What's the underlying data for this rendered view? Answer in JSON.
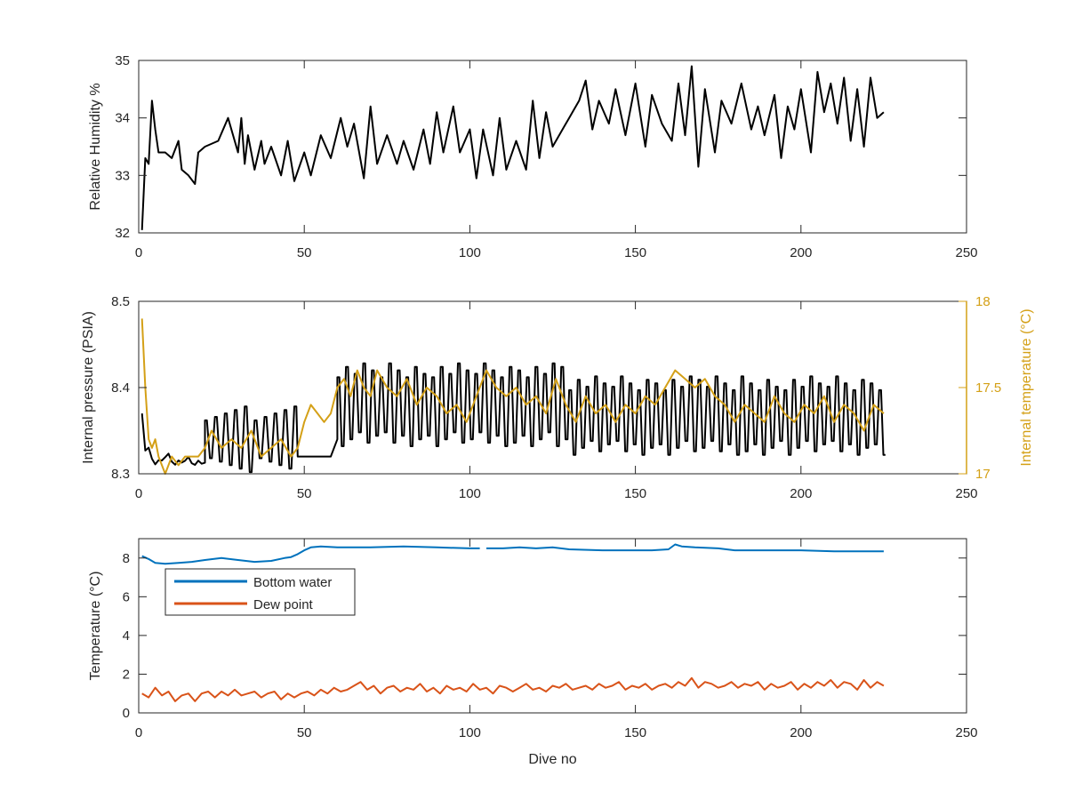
{
  "chart_data": [
    {
      "type": "line",
      "title": "",
      "xlabel": "",
      "ylabel": "Relative Humidity %",
      "xlim": [
        0,
        250
      ],
      "ylim": [
        32,
        35
      ],
      "xticks": [
        0,
        50,
        100,
        150,
        200,
        250
      ],
      "yticks": [
        32,
        33,
        34,
        35
      ],
      "grid": false,
      "series": [
        {
          "color": "#000000",
          "x": [
            1,
            2,
            3,
            4,
            5,
            6,
            8,
            10,
            12,
            13,
            15,
            17,
            18,
            20,
            24,
            27,
            30,
            31,
            32,
            33,
            35,
            37,
            38,
            40,
            43,
            45,
            47,
            50,
            52,
            55,
            58,
            61,
            63,
            65,
            68,
            70,
            72,
            75,
            78,
            80,
            83,
            86,
            88,
            90,
            92,
            95,
            97,
            100,
            102,
            104,
            107,
            109,
            111,
            114,
            117,
            119,
            121,
            123,
            125,
            127,
            130,
            133,
            135,
            137,
            139,
            142,
            144,
            147,
            150,
            153,
            155,
            158,
            161,
            163,
            165,
            167,
            169,
            171,
            174,
            176,
            179,
            182,
            185,
            187,
            189,
            192,
            194,
            196,
            198,
            200,
            203,
            205,
            207,
            209,
            211,
            213,
            215,
            217,
            219,
            221,
            223,
            225
          ],
          "y": [
            32.05,
            33.3,
            33.2,
            34.3,
            33.8,
            33.4,
            33.4,
            33.3,
            33.6,
            33.1,
            33.0,
            32.85,
            33.4,
            33.5,
            33.6,
            34.0,
            33.4,
            34.0,
            33.2,
            33.7,
            33.1,
            33.6,
            33.2,
            33.5,
            33.0,
            33.6,
            32.9,
            33.4,
            33.0,
            33.7,
            33.3,
            34.0,
            33.5,
            33.9,
            32.95,
            34.2,
            33.2,
            33.7,
            33.2,
            33.6,
            33.1,
            33.8,
            33.2,
            34.1,
            33.4,
            34.2,
            33.4,
            33.8,
            32.95,
            33.8,
            33.0,
            34.0,
            33.1,
            33.6,
            33.1,
            34.3,
            33.3,
            34.1,
            33.5,
            33.7,
            34.0,
            34.3,
            34.65,
            33.8,
            34.3,
            33.9,
            34.5,
            33.7,
            34.6,
            33.5,
            34.4,
            33.9,
            33.6,
            34.6,
            33.7,
            34.9,
            33.15,
            34.5,
            33.4,
            34.3,
            33.9,
            34.6,
            33.8,
            34.2,
            33.7,
            34.4,
            33.3,
            34.2,
            33.8,
            34.5,
            33.4,
            34.8,
            34.1,
            34.6,
            33.9,
            34.7,
            33.6,
            34.5,
            33.5,
            34.7,
            34.0,
            34.1
          ]
        }
      ]
    },
    {
      "type": "line",
      "title": "",
      "xlabel": "",
      "ylabel": "Internal pressure (PSIA)",
      "ylabel_right": "Internal temperature (°C)",
      "xlim": [
        0,
        250
      ],
      "ylim": [
        8.3,
        8.5
      ],
      "ylim_right": [
        17,
        18
      ],
      "xticks": [
        0,
        50,
        100,
        150,
        200,
        250
      ],
      "yticks": [
        8.3,
        8.4,
        8.5
      ],
      "yticks_right": [
        17,
        17.5,
        18
      ],
      "grid": false,
      "series": [
        {
          "axis": "left",
          "color": "#000000",
          "pattern": {
            "segments": [
              {
                "x0": 1,
                "x1": 20,
                "base": 8.31,
                "amp": 0.02,
                "period": 6,
                "start": 8.37
              },
              {
                "x0": 20,
                "x1": 48,
                "low": 8.31,
                "high": 8.37,
                "period": 3
              },
              {
                "x0": 48,
                "x1": 60,
                "level": 8.32,
                "end": 8.34
              },
              {
                "x0": 60,
                "x1": 130,
                "low": 8.34,
                "high": 8.42,
                "period": 2.6
              },
              {
                "x0": 130,
                "x1": 225,
                "low": 8.33,
                "high": 8.405,
                "period": 2.6
              }
            ]
          }
        },
        {
          "axis": "right",
          "color": "#D4A017",
          "x": [
            1,
            2,
            3,
            4,
            5,
            6,
            8,
            10,
            12,
            14,
            16,
            18,
            20,
            22,
            25,
            28,
            31,
            34,
            37,
            40,
            43,
            46,
            48,
            50,
            52,
            54,
            56,
            58,
            60,
            62,
            64,
            66,
            68,
            70,
            72,
            75,
            78,
            81,
            84,
            87,
            90,
            93,
            96,
            99,
            102,
            105,
            108,
            111,
            114,
            117,
            120,
            123,
            126,
            129,
            132,
            135,
            138,
            141,
            144,
            147,
            150,
            153,
            156,
            159,
            162,
            165,
            168,
            171,
            174,
            177,
            180,
            183,
            186,
            189,
            192,
            195,
            198,
            201,
            204,
            207,
            210,
            213,
            216,
            219,
            222,
            225
          ],
          "y": [
            17.9,
            17.5,
            17.2,
            17.15,
            17.2,
            17.1,
            17.0,
            17.1,
            17.05,
            17.1,
            17.1,
            17.1,
            17.15,
            17.25,
            17.15,
            17.2,
            17.15,
            17.25,
            17.1,
            17.15,
            17.2,
            17.1,
            17.15,
            17.3,
            17.4,
            17.35,
            17.3,
            17.35,
            17.5,
            17.55,
            17.45,
            17.6,
            17.5,
            17.45,
            17.6,
            17.5,
            17.45,
            17.55,
            17.4,
            17.5,
            17.45,
            17.35,
            17.4,
            17.3,
            17.45,
            17.6,
            17.5,
            17.45,
            17.5,
            17.4,
            17.45,
            17.35,
            17.55,
            17.4,
            17.3,
            17.45,
            17.35,
            17.4,
            17.3,
            17.4,
            17.35,
            17.45,
            17.4,
            17.5,
            17.6,
            17.55,
            17.5,
            17.55,
            17.45,
            17.4,
            17.3,
            17.4,
            17.35,
            17.3,
            17.45,
            17.35,
            17.3,
            17.4,
            17.35,
            17.45,
            17.3,
            17.4,
            17.35,
            17.25,
            17.4,
            17.35
          ]
        }
      ]
    },
    {
      "type": "line",
      "title": "",
      "xlabel": "Dive no",
      "ylabel": "Temperature (°C)",
      "xlim": [
        0,
        250
      ],
      "ylim": [
        0,
        9
      ],
      "xticks": [
        0,
        50,
        100,
        150,
        200,
        250
      ],
      "yticks": [
        0,
        2,
        4,
        6,
        8
      ],
      "grid": false,
      "legend": "top-left",
      "series": [
        {
          "name": "Bottom water",
          "color": "#0072BD",
          "x": [
            1,
            3,
            5,
            8,
            12,
            16,
            20,
            25,
            30,
            35,
            40,
            44,
            46,
            48,
            50,
            52,
            55,
            60,
            70,
            80,
            90,
            100,
            103
          ],
          "y": [
            8.1,
            7.95,
            7.75,
            7.7,
            7.75,
            7.8,
            7.9,
            8.0,
            7.9,
            7.8,
            7.85,
            8.0,
            8.05,
            8.2,
            8.4,
            8.55,
            8.6,
            8.55,
            8.55,
            8.6,
            8.55,
            8.5,
            8.5
          ]
        },
        {
          "name": "",
          "color": "#0072BD",
          "x": [
            105,
            110,
            115,
            120,
            125,
            130,
            140,
            150,
            155,
            160,
            162,
            164,
            168,
            175,
            180,
            190,
            200,
            210,
            220,
            225
          ],
          "y": [
            8.5,
            8.5,
            8.55,
            8.5,
            8.55,
            8.45,
            8.4,
            8.4,
            8.4,
            8.45,
            8.7,
            8.6,
            8.55,
            8.5,
            8.4,
            8.4,
            8.4,
            8.35,
            8.35,
            8.35
          ]
        },
        {
          "name": "Dew point",
          "color": "#D95319",
          "x": [
            1,
            3,
            5,
            7,
            9,
            11,
            13,
            15,
            17,
            19,
            21,
            23,
            25,
            27,
            29,
            31,
            33,
            35,
            37,
            39,
            41,
            43,
            45,
            47,
            49,
            51,
            53,
            55,
            57,
            59,
            61,
            63,
            65,
            67,
            69,
            71,
            73,
            75,
            77,
            79,
            81,
            83,
            85,
            87,
            89,
            91,
            93,
            95,
            97,
            99,
            101,
            103,
            105,
            107,
            109,
            111,
            113,
            115,
            117,
            119,
            121,
            123,
            125,
            127,
            129,
            131,
            133,
            135,
            137,
            139,
            141,
            143,
            145,
            147,
            149,
            151,
            153,
            155,
            157,
            159,
            161,
            163,
            165,
            167,
            169,
            171,
            173,
            175,
            177,
            179,
            181,
            183,
            185,
            187,
            189,
            191,
            193,
            195,
            197,
            199,
            201,
            203,
            205,
            207,
            209,
            211,
            213,
            215,
            217,
            219,
            221,
            223,
            225
          ],
          "y": [
            1.0,
            0.8,
            1.3,
            0.9,
            1.1,
            0.6,
            0.9,
            1.0,
            0.6,
            1.0,
            1.1,
            0.8,
            1.1,
            0.9,
            1.2,
            0.9,
            1.0,
            1.1,
            0.8,
            1.0,
            1.1,
            0.7,
            1.0,
            0.8,
            1.0,
            1.1,
            0.9,
            1.2,
            1.0,
            1.3,
            1.1,
            1.2,
            1.4,
            1.6,
            1.2,
            1.4,
            1.0,
            1.3,
            1.4,
            1.1,
            1.3,
            1.2,
            1.5,
            1.1,
            1.3,
            1.0,
            1.4,
            1.2,
            1.3,
            1.1,
            1.5,
            1.2,
            1.3,
            1.0,
            1.4,
            1.3,
            1.1,
            1.3,
            1.5,
            1.2,
            1.3,
            1.1,
            1.4,
            1.3,
            1.5,
            1.2,
            1.3,
            1.4,
            1.2,
            1.5,
            1.3,
            1.4,
            1.6,
            1.2,
            1.4,
            1.3,
            1.5,
            1.2,
            1.4,
            1.5,
            1.3,
            1.6,
            1.4,
            1.8,
            1.3,
            1.6,
            1.5,
            1.3,
            1.4,
            1.6,
            1.3,
            1.5,
            1.4,
            1.6,
            1.2,
            1.5,
            1.3,
            1.4,
            1.6,
            1.2,
            1.5,
            1.3,
            1.6,
            1.4,
            1.7,
            1.3,
            1.6,
            1.5,
            1.2,
            1.7,
            1.3,
            1.6,
            1.4
          ]
        }
      ]
    }
  ]
}
